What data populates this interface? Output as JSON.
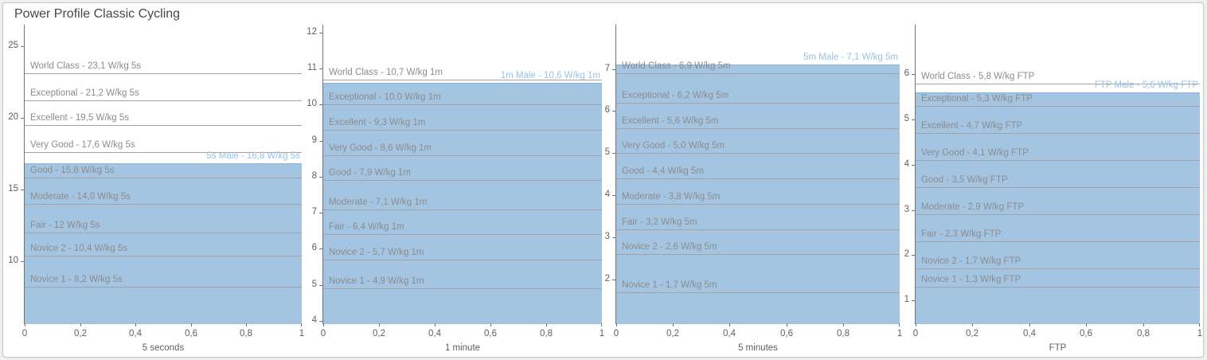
{
  "title": "Power Profile Classic Cycling",
  "colors": {
    "area_fill": "#a4c5e2",
    "area_edge": "#8db3d4",
    "athlete_label": "#98c2e6",
    "threshold_line": "#a3a3a3",
    "threshold_label": "#8c8c8c",
    "axis": "#747474",
    "axis_label": "#5f5f5f"
  },
  "chart_data": [
    {
      "id": "5-seconds",
      "type": "area",
      "xlabel": "5 seconds",
      "x_tick_labels": [
        "0",
        "0,2",
        "0,4",
        "0,6",
        "0,8",
        "1"
      ],
      "x_tick_positions": [
        0,
        0.2,
        0.4,
        0.6,
        0.8,
        1
      ],
      "ylim": [
        5.65,
        26.5
      ],
      "y_ticks": [
        10,
        15,
        20,
        25
      ],
      "grid": false,
      "legend": "none",
      "athlete": {
        "label": "5s Male - 16,8 W/kg 5s",
        "value": 16.8
      },
      "thresholds": [
        {
          "label": "World Class - 23,1 W/kg 5s",
          "value": 23.1
        },
        {
          "label": "Exceptional - 21,2 W/kg 5s",
          "value": 21.2
        },
        {
          "label": "Excellent - 19,5 W/kg 5s",
          "value": 19.5
        },
        {
          "label": "Very Good - 17,6 W/kg 5s",
          "value": 17.6
        },
        {
          "label": "Good - 15,8 W/kg 5s",
          "value": 15.8
        },
        {
          "label": "Moderate - 14,0 W/kg 5s",
          "value": 14.0
        },
        {
          "label": "Fair - 12 W/kg 5s",
          "value": 12
        },
        {
          "label": "Novice 2 - 10,4 W/kg 5s",
          "value": 10.4
        },
        {
          "label": "Novice 1 - 8,2 W/kg 5s",
          "value": 8.2
        }
      ]
    },
    {
      "id": "1-minute",
      "type": "area",
      "xlabel": "1 minute",
      "x_tick_labels": [
        "0",
        "0,2",
        "0,4",
        "0,6",
        "0,8",
        "1"
      ],
      "x_tick_positions": [
        0,
        0.2,
        0.4,
        0.6,
        0.8,
        1
      ],
      "ylim": [
        3.93,
        12.22
      ],
      "y_ticks": [
        4,
        5,
        6,
        7,
        8,
        9,
        10,
        11,
        12
      ],
      "grid": false,
      "legend": "none",
      "athlete": {
        "label": "1m Male - 10,6 W/kg 1m",
        "value": 10.6
      },
      "thresholds": [
        {
          "label": "World Class - 10,7 W/kg 1m",
          "value": 10.7
        },
        {
          "label": "Exceptional - 10,0 W/kg 1m",
          "value": 10.0
        },
        {
          "label": "Excellent - 9,3 W/kg 1m",
          "value": 9.3
        },
        {
          "label": "Very Good - 8,6 W/kg 1m",
          "value": 8.6
        },
        {
          "label": "Good - 7,9 W/kg 1m",
          "value": 7.9
        },
        {
          "label": "Moderate - 7,1 W/kg 1m",
          "value": 7.1
        },
        {
          "label": "Fair - 6,4 W/kg 1m",
          "value": 6.4
        },
        {
          "label": "Novice 2 - 5,7 W/kg 1m",
          "value": 5.7
        },
        {
          "label": "Novice 1 - 4,9 W/kg 1m",
          "value": 4.9
        }
      ]
    },
    {
      "id": "5-minutes",
      "type": "area",
      "xlabel": "5 minutes",
      "x_tick_labels": [
        "0",
        "0,2",
        "0,4",
        "0,6",
        "0,8",
        "1"
      ],
      "x_tick_positions": [
        0,
        0.2,
        0.4,
        0.6,
        0.8,
        1
      ],
      "ylim": [
        0.96,
        8.05
      ],
      "y_ticks": [
        2,
        3,
        4,
        5,
        6,
        7
      ],
      "grid": false,
      "legend": "none",
      "athlete": {
        "label": "5m Male - 7,1 W/kg 5m",
        "value": 7.1
      },
      "thresholds": [
        {
          "label": "World Class - 6,9 W/kg 5m",
          "value": 6.9
        },
        {
          "label": "Exceptional - 6,2 W/kg 5m",
          "value": 6.2
        },
        {
          "label": "Excellent - 5,6 W/kg 5m",
          "value": 5.6
        },
        {
          "label": "Very Good - 5,0 W/kg 5m",
          "value": 5.0
        },
        {
          "label": "Good - 4,4 W/kg 5m",
          "value": 4.4
        },
        {
          "label": "Moderate - 3,8 W/kg 5m",
          "value": 3.8
        },
        {
          "label": "Fair - 3,2 W/kg 5m",
          "value": 3.2
        },
        {
          "label": "Novice 2 - 2,6 W/kg 5m",
          "value": 2.6
        },
        {
          "label": "Novice 1 - 1,7 W/kg 5m",
          "value": 1.7
        }
      ]
    },
    {
      "id": "ftp",
      "type": "area",
      "xlabel": "FTP",
      "x_tick_labels": [
        "0",
        "0,2",
        "0,4",
        "0,6",
        "0,8",
        "1"
      ],
      "x_tick_positions": [
        0,
        0.2,
        0.4,
        0.6,
        0.8,
        1
      ],
      "ylim": [
        0.49,
        7.1
      ],
      "y_ticks": [
        1,
        2,
        3,
        4,
        5,
        6
      ],
      "grid": false,
      "legend": "none",
      "athlete": {
        "label": "FTP Male - 5,6 W/kg FTP",
        "value": 5.6
      },
      "thresholds": [
        {
          "label": "World Class - 5,8 W/kg FTP",
          "value": 5.8
        },
        {
          "label": "Exceptional - 5,3 W/kg FTP",
          "value": 5.3
        },
        {
          "label": "Excellent - 4,7 W/kg FTP",
          "value": 4.7
        },
        {
          "label": "Very Good - 4,1 W/kg FTP",
          "value": 4.1
        },
        {
          "label": "Good - 3,5 W/kg FTP",
          "value": 3.5
        },
        {
          "label": "Moderate - 2,9 W/kg FTP",
          "value": 2.9
        },
        {
          "label": "Fair - 2,3 W/kg FTP",
          "value": 2.3
        },
        {
          "label": "Novice 2 - 1,7 W/kg FTP",
          "value": 1.7
        },
        {
          "label": "Novice 1 - 1,3 W/kg FTP",
          "value": 1.3
        }
      ]
    }
  ]
}
